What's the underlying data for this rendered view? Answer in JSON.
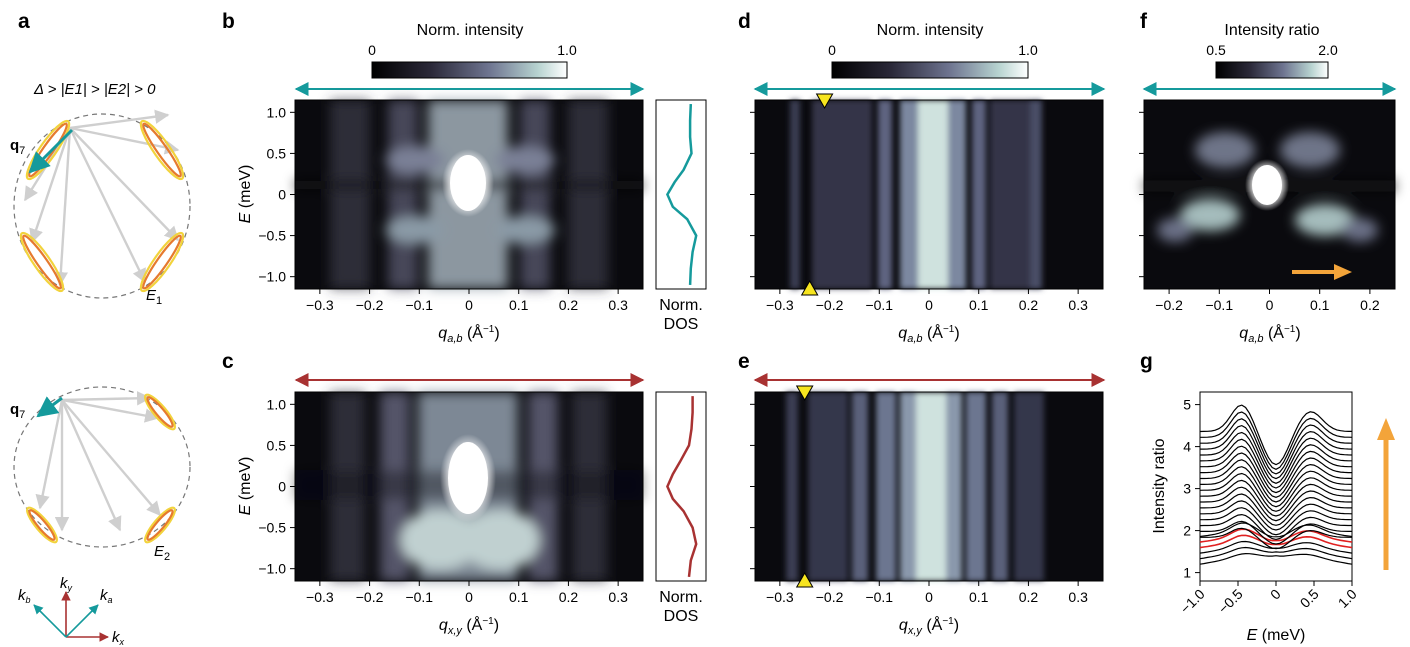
{
  "panels": {
    "a": {
      "letter": "a",
      "condition": "Δ > |E1| > |E2| > 0",
      "q7_top": "q7",
      "q7_bottom": "q7",
      "E1": "E1",
      "E2": "E2",
      "axes": {
        "kx": "kx",
        "ky": "ky",
        "ka": "ka",
        "kb": "kb"
      }
    },
    "b": {
      "letter": "b",
      "cbar_title": "Norm. intensity",
      "cbar_min": "0",
      "cbar_max": "1.0",
      "arrow_color": "#159a9c"
    },
    "c": {
      "letter": "c",
      "arrow_color": "#a83232"
    },
    "d": {
      "letter": "d",
      "cbar_title": "Norm. intensity",
      "cbar_min": "0",
      "cbar_max": "1.0"
    },
    "e": {
      "letter": "e"
    },
    "f": {
      "letter": "f",
      "cbar_title": "Intensity ratio",
      "cbar_min": "0.5",
      "cbar_max": "2.0"
    },
    "g": {
      "letter": "g"
    }
  },
  "labels": {
    "E_meV": "E (meV)",
    "q_ab": "q",
    "q_ab_sub": "a,b",
    "q_xy_sub": "x,y",
    "q_unit": " (Å⁻¹)",
    "norm": "Norm.",
    "dos": "DOS",
    "intensity_ratio": "Intensity ratio"
  },
  "colors": {
    "teal": "#159a9c",
    "red": "#a83232",
    "orange": "#f3a43a",
    "yellow": "#f7e51f",
    "ellipse_orange": "#e67a2e",
    "ellipse_yellow": "#f2d33c",
    "gray_arrow": "#cfcfcf"
  },
  "chart_data": [
    {
      "type": "heatmap",
      "panel": "b",
      "xlabel": "q_{a,b} (Å^-1)",
      "ylabel": "E (meV)",
      "xlim": [
        -0.35,
        0.35
      ],
      "ylim": [
        -1.15,
        1.15
      ],
      "xticks": [
        -0.3,
        -0.2,
        -0.1,
        0,
        0.1,
        0.2,
        0.3
      ],
      "yticks": [
        1.0,
        0.5,
        0,
        -0.5,
        -1.0
      ],
      "colorbar": {
        "label": "Norm. intensity",
        "range": [
          0,
          1.0
        ]
      }
    },
    {
      "type": "line",
      "panel": "b-dos",
      "xlabel": "Norm. DOS",
      "y": [
        1.1,
        0.9,
        0.7,
        0.5,
        0.3,
        0.15,
        0,
        -0.15,
        -0.3,
        -0.5,
        -0.7,
        -0.9,
        -1.1
      ],
      "x": [
        0.8,
        0.78,
        0.78,
        0.82,
        0.6,
        0.35,
        0.15,
        0.3,
        0.7,
        0.95,
        0.85,
        0.8,
        0.78
      ]
    },
    {
      "type": "heatmap",
      "panel": "c",
      "xlabel": "q_{x,y} (Å^-1)",
      "ylabel": "E (meV)",
      "xlim": [
        -0.35,
        0.35
      ],
      "ylim": [
        -1.15,
        1.15
      ],
      "xticks": [
        -0.3,
        -0.2,
        -0.1,
        0,
        0.1,
        0.2,
        0.3
      ],
      "yticks": [
        1.0,
        0.5,
        0,
        -0.5,
        -1.0
      ]
    },
    {
      "type": "line",
      "panel": "c-dos",
      "xlabel": "Norm. DOS",
      "y": [
        1.1,
        0.9,
        0.7,
        0.5,
        0.3,
        0.15,
        0,
        -0.15,
        -0.3,
        -0.5,
        -0.7,
        -0.9,
        -1.1
      ],
      "x": [
        0.85,
        0.85,
        0.82,
        0.75,
        0.5,
        0.3,
        0.15,
        0.3,
        0.6,
        0.85,
        0.95,
        0.8,
        0.75
      ]
    },
    {
      "type": "heatmap",
      "panel": "d",
      "xlabel": "q_{a,b} (Å^-1)",
      "xlim": [
        -0.35,
        0.35
      ],
      "ylim": [
        -1.15,
        1.15
      ],
      "xticks": [
        -0.3,
        -0.2,
        -0.1,
        0,
        0.1,
        0.2,
        0.3
      ],
      "colorbar": {
        "label": "Norm. intensity",
        "range": [
          0,
          1.0
        ]
      },
      "markers": [
        {
          "q": -0.21,
          "E": 1.15,
          "dir": "down"
        },
        {
          "q": -0.24,
          "E": -1.15,
          "dir": "up"
        }
      ]
    },
    {
      "type": "heatmap",
      "panel": "e",
      "xlabel": "q_{x,y} (Å^-1)",
      "xlim": [
        -0.35,
        0.35
      ],
      "ylim": [
        -1.15,
        1.15
      ],
      "xticks": [
        -0.3,
        -0.2,
        -0.1,
        0,
        0.1,
        0.2,
        0.3
      ],
      "markers": [
        {
          "q": -0.25,
          "E": 1.15,
          "dir": "down"
        },
        {
          "q": -0.25,
          "E": -1.15,
          "dir": "up"
        }
      ]
    },
    {
      "type": "heatmap",
      "panel": "f",
      "xlabel": "q_{a,b} (Å^-1)",
      "xlim": [
        -0.25,
        0.25
      ],
      "ylim": [
        -1.15,
        1.15
      ],
      "xticks": [
        -0.2,
        -0.1,
        0,
        0.1,
        0.2
      ],
      "colorbar": {
        "label": "Intensity ratio",
        "range": [
          0.5,
          2.0
        ]
      }
    },
    {
      "type": "line",
      "panel": "g",
      "xlabel": "E (meV)",
      "ylabel": "Intensity ratio",
      "xlim": [
        -1.0,
        1.0
      ],
      "ylim": [
        0.8,
        5.3
      ],
      "xticks": [
        -1.0,
        -0.5,
        0,
        0.5,
        1.0
      ],
      "yticks": [
        1,
        2,
        3,
        4,
        5
      ],
      "n_curves": 25,
      "highlighted_curves": [
        3,
        4
      ],
      "highlight_color": "#e02020",
      "first_curve_endpoints": {
        "E": [
          -1.0,
          0,
          1.0
        ],
        "ratio": [
          1.0,
          1.7,
          1.3
        ]
      },
      "last_curve_endpoints": {
        "E": [
          -1.0,
          -0.45,
          0,
          0.45,
          1.0
        ],
        "ratio": [
          4.4,
          5.05,
          4.0,
          4.6,
          4.45
        ]
      }
    }
  ]
}
